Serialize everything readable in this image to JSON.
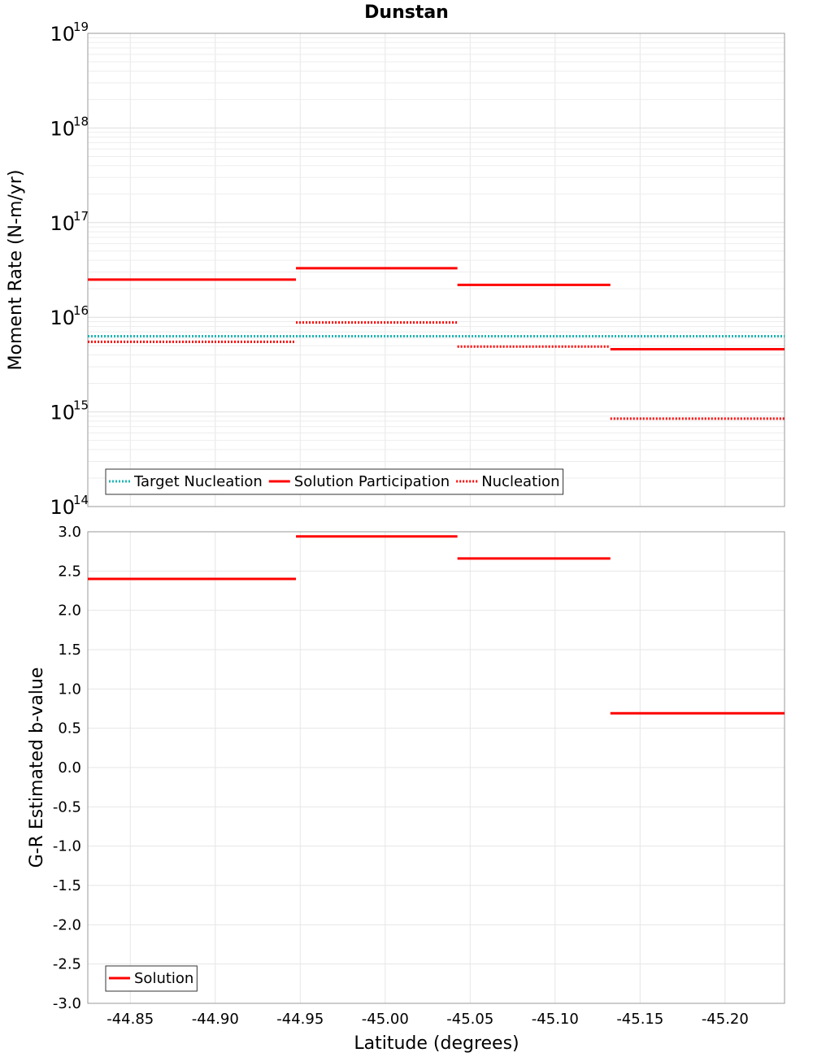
{
  "chart_data": {
    "title": "Dunstan",
    "xlabel": "Latitude (degrees)",
    "xlim": [
      -44.825,
      -45.235
    ],
    "xticks": [
      {
        "v": -44.85,
        "label": "-44.85"
      },
      {
        "v": -44.9,
        "label": "-44.90"
      },
      {
        "v": -44.95,
        "label": "-44.95"
      },
      {
        "v": -45.0,
        "label": "-45.00"
      },
      {
        "v": -45.05,
        "label": "-45.05"
      },
      {
        "v": -45.1,
        "label": "-45.10"
      },
      {
        "v": -45.15,
        "label": "-45.15"
      },
      {
        "v": -45.2,
        "label": "-45.20"
      }
    ],
    "panels": [
      {
        "type": "line",
        "scale": "log",
        "ylabel": "Moment Rate (N-m/yr)",
        "ylim_exp": [
          14,
          19
        ],
        "yticks": [
          {
            "exp": 19,
            "base": "10",
            "sup": "19"
          },
          {
            "exp": 18,
            "base": "10",
            "sup": "18"
          },
          {
            "exp": 17,
            "base": "10",
            "sup": "17"
          },
          {
            "exp": 16,
            "base": "10",
            "sup": "16"
          },
          {
            "exp": 15,
            "base": "10",
            "sup": "15"
          },
          {
            "exp": 14,
            "base": "10",
            "sup": "14"
          }
        ],
        "legend_position": "bottom-left",
        "series": [
          {
            "name": "Target Nucleation",
            "color": "#1fb5b5",
            "style": "dotted",
            "segments": [
              {
                "x": [
                  -44.825,
                  -45.235
                ],
                "y": 6300000000000000.0
              }
            ]
          },
          {
            "name": "Solution Participation",
            "color": "#ff0000",
            "style": "solid",
            "segments": [
              {
                "x": [
                  -44.825,
                  -44.9475
                ],
                "y": 2.5e+16
              },
              {
                "x": [
                  -44.9475,
                  -45.0425
                ],
                "y": 3.3e+16
              },
              {
                "x": [
                  -45.0425,
                  -45.1325
                ],
                "y": 2.2e+16
              },
              {
                "x": [
                  -45.1325,
                  -45.235
                ],
                "y": 4600000000000000.0
              }
            ]
          },
          {
            "name": "Nucleation",
            "color": "#ff0000",
            "style": "dotted",
            "segments": [
              {
                "x": [
                  -44.825,
                  -44.9475
                ],
                "y": 5500000000000000.0
              },
              {
                "x": [
                  -44.9475,
                  -45.0425
                ],
                "y": 8800000000000000.0
              },
              {
                "x": [
                  -45.0425,
                  -45.1325
                ],
                "y": 4900000000000000.0
              },
              {
                "x": [
                  -45.1325,
                  -45.235
                ],
                "y": 850000000000000.0
              }
            ]
          }
        ]
      },
      {
        "type": "line",
        "scale": "linear",
        "ylabel": "G-R Estimated b-value",
        "ylim": [
          -3.0,
          3.0
        ],
        "yticks": [
          {
            "v": 3.0,
            "label": "3.0"
          },
          {
            "v": 2.5,
            "label": "2.5"
          },
          {
            "v": 2.0,
            "label": "2.0"
          },
          {
            "v": 1.5,
            "label": "1.5"
          },
          {
            "v": 1.0,
            "label": "1.0"
          },
          {
            "v": 0.5,
            "label": "0.5"
          },
          {
            "v": 0.0,
            "label": "0.0"
          },
          {
            "v": -0.5,
            "label": "-0.5"
          },
          {
            "v": -1.0,
            "label": "-1.0"
          },
          {
            "v": -1.5,
            "label": "-1.5"
          },
          {
            "v": -2.0,
            "label": "-2.0"
          },
          {
            "v": -2.5,
            "label": "-2.5"
          },
          {
            "v": -3.0,
            "label": "-3.0"
          }
        ],
        "legend_position": "bottom-left",
        "series": [
          {
            "name": "Solution",
            "color": "#ff0000",
            "style": "solid",
            "segments": [
              {
                "x": [
                  -44.825,
                  -44.9475
                ],
                "y": 2.4
              },
              {
                "x": [
                  -44.9475,
                  -45.0425
                ],
                "y": 2.94
              },
              {
                "x": [
                  -45.0425,
                  -45.1325
                ],
                "y": 2.66
              },
              {
                "x": [
                  -45.1325,
                  -45.235
                ],
                "y": 0.69
              }
            ]
          }
        ]
      }
    ]
  }
}
